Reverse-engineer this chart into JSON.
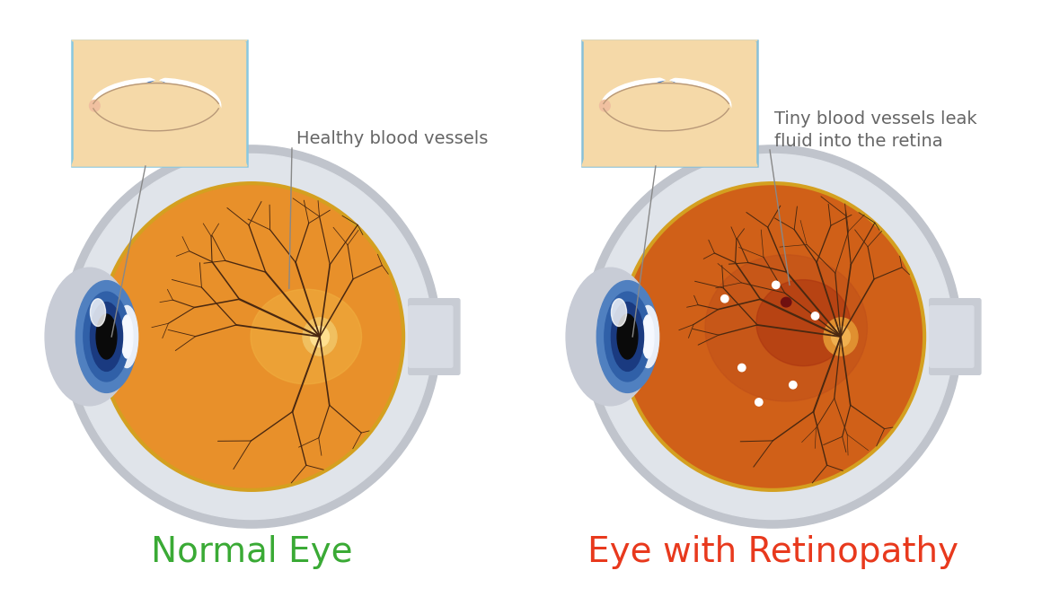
{
  "background_color": "#ffffff",
  "title_left": "Normal Eye",
  "title_right": "Eye with Retinopathy",
  "title_left_color": "#3aaa35",
  "title_right_color": "#e8391d",
  "title_fontsize": 28,
  "label_left": "Healthy blood vessels",
  "label_right": "Tiny blood vessels leak\nfluid into the retina",
  "label_color": "#666666",
  "label_fontsize": 14,
  "skin_color": "#f5d9a8",
  "eye_box_border_left": "#88c8e0",
  "eye_box_border_right": "#88c0d8",
  "sclera_outer1": "#c0c4cc",
  "sclera_outer2": "#d4d8e0",
  "sclera_inner": "#e0e4ea",
  "retina_normal": "#e8902a",
  "retina_rim": "#d4a020",
  "retina_glow": "#f0b040",
  "retina_diseased": "#d06018",
  "retina_dark_patch": "#a83808",
  "vessel_color": "#4a2810",
  "disc_normal": "#f0c060",
  "disc_diseased": "#e09030",
  "iris_outer": "#5080c0",
  "iris_mid": "#3060a8",
  "iris_inner": "#1a3a80",
  "pupil_normal": "#0a0a0a",
  "pupil_diseased": "#606060",
  "pupil_highlight_diseased": "#909090",
  "lens_color": "#e8eef8",
  "nerve_color": "#c8ccd4",
  "nerve_color2": "#d8dce4",
  "cornea_outer": "#c8ccd6",
  "line_color": "#888888",
  "exudate_color": "#ffffff",
  "hemorrhage_color": "#701010"
}
